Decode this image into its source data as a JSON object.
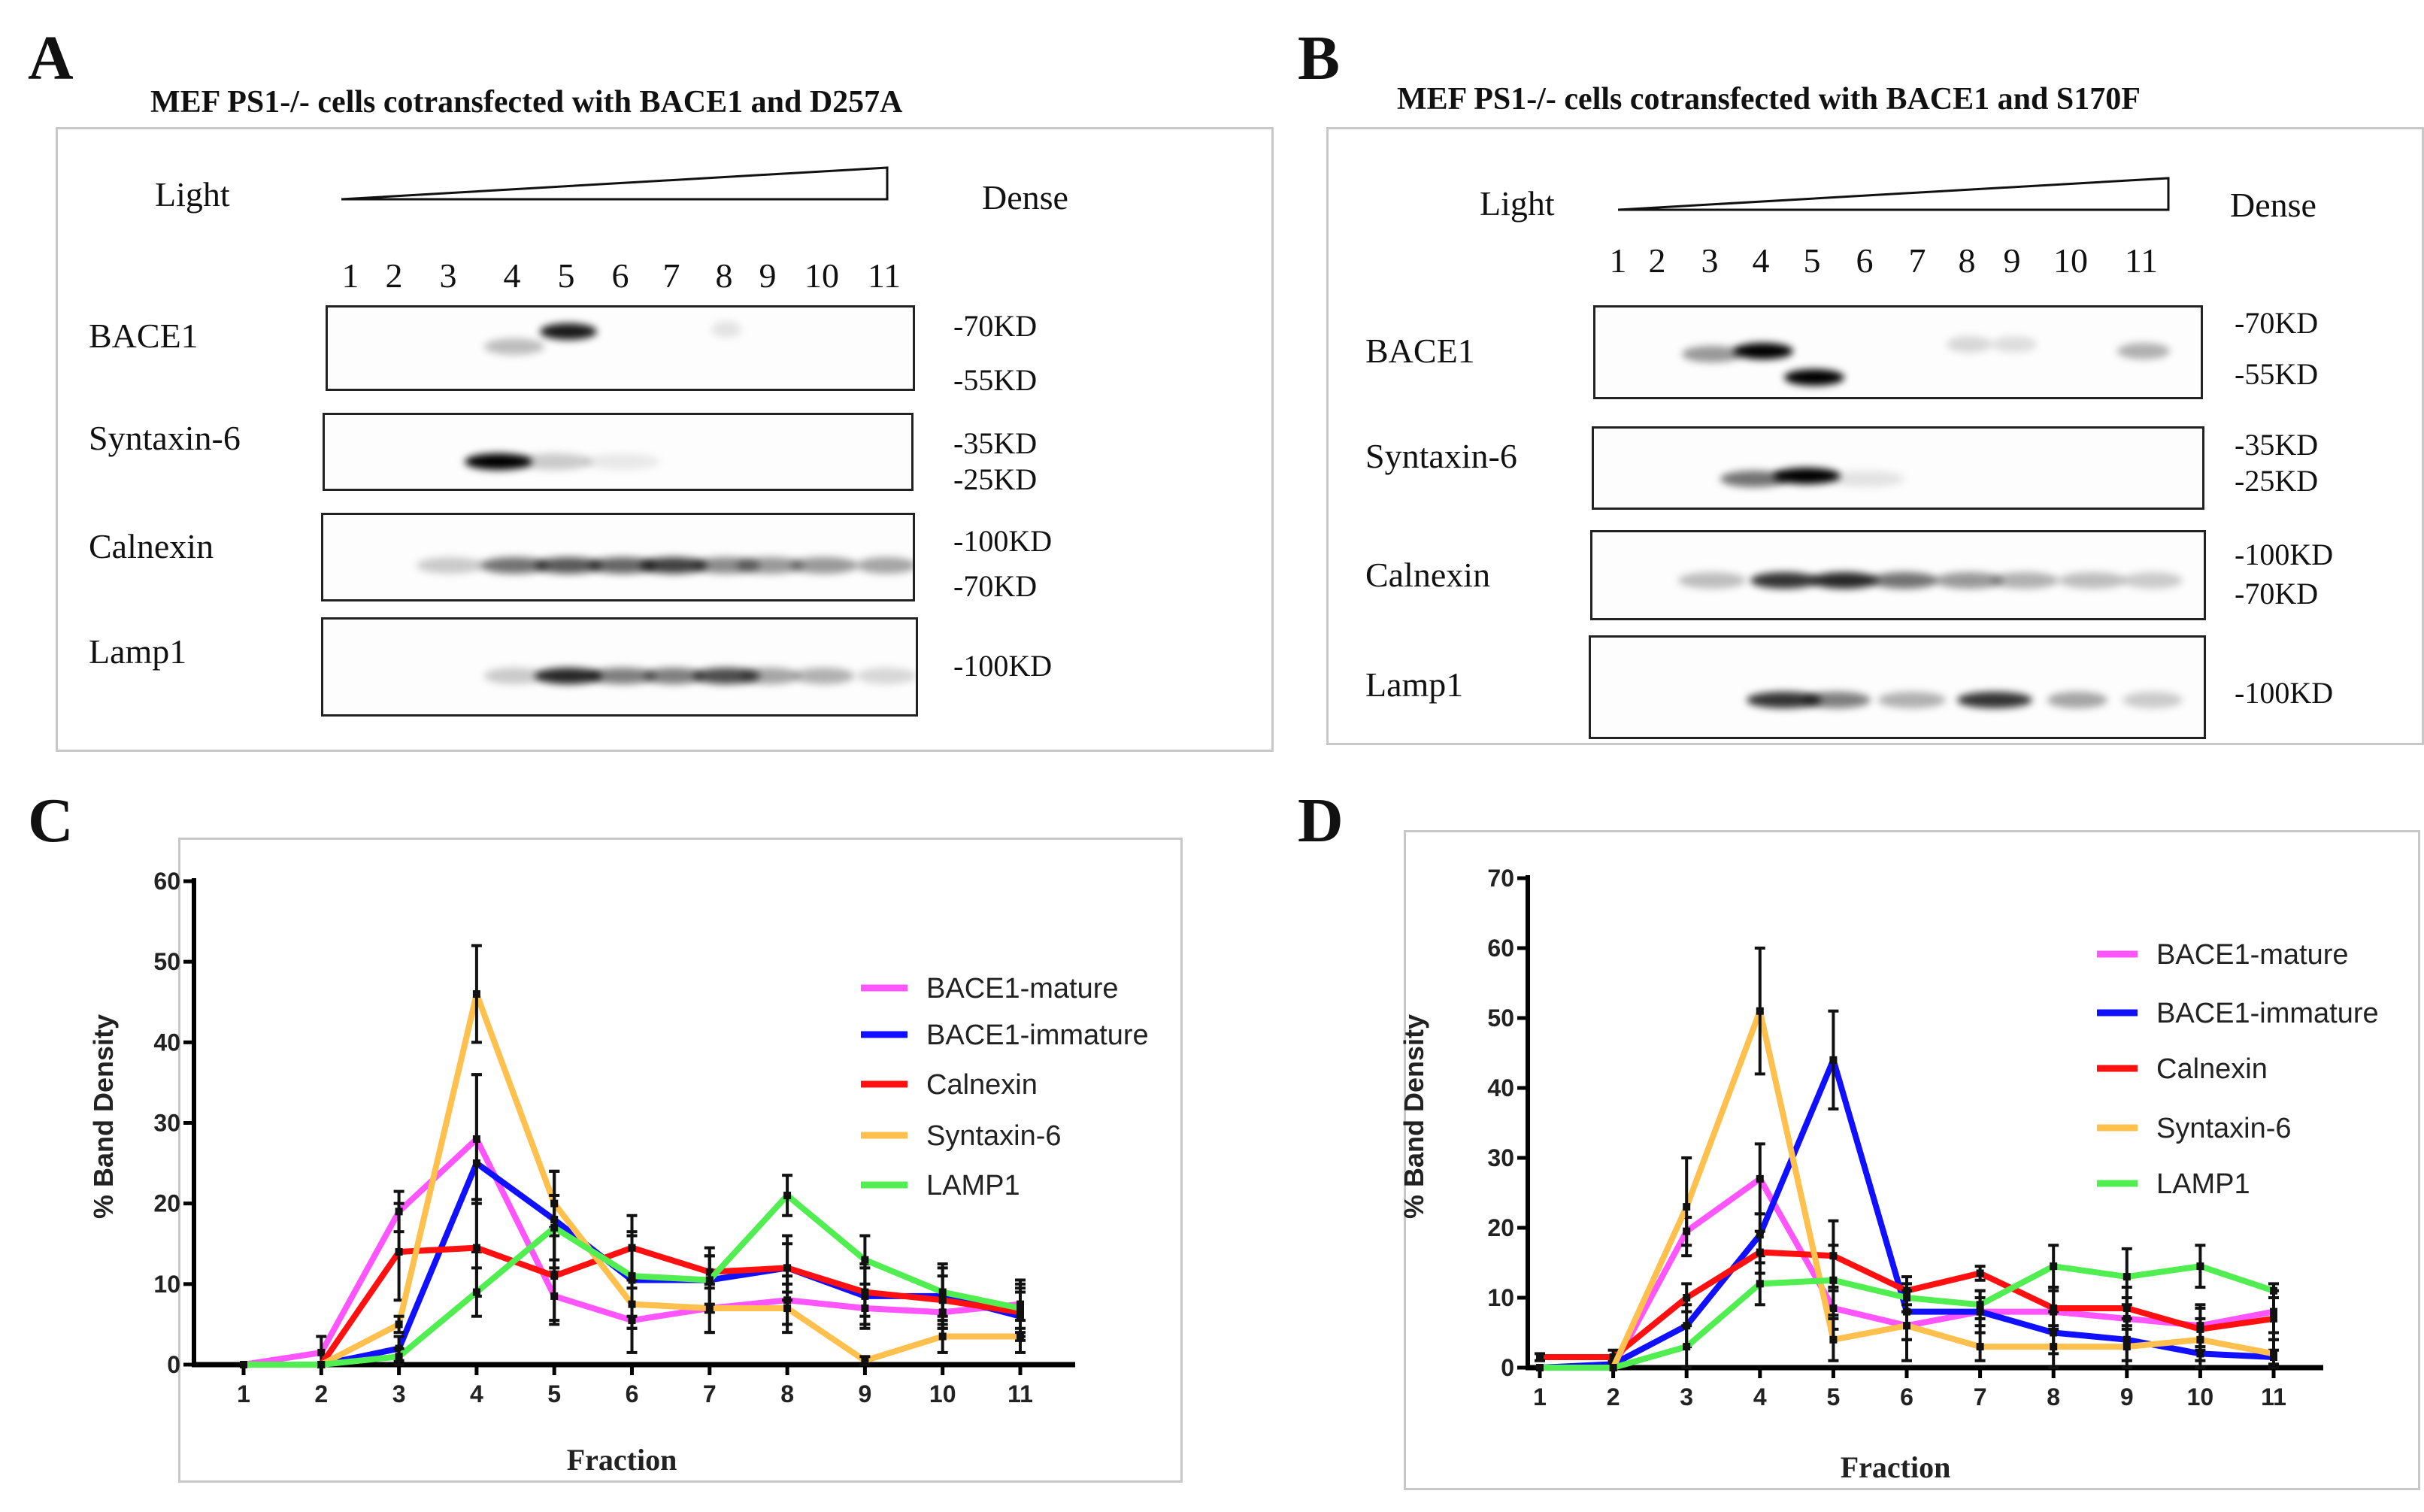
{
  "panel_a": {
    "letter": "A",
    "title": "MEF PS1-/- cells cotransfected with BACE1 and D257A",
    "light": "Light",
    "dense": "Dense",
    "lanes": [
      "1",
      "2",
      "3",
      "4",
      "5",
      "6",
      "7",
      "8",
      "9",
      "10",
      "11"
    ],
    "blots": [
      {
        "label": "BACE1",
        "markers": [
          "-70KD",
          "-55KD"
        ]
      },
      {
        "label": "Syntaxin-6",
        "markers": [
          "-35KD",
          "-25KD"
        ]
      },
      {
        "label": "Calnexin",
        "markers": [
          "-100KD",
          "-70KD"
        ]
      },
      {
        "label": "Lamp1",
        "markers": [
          "-100KD"
        ]
      }
    ]
  },
  "panel_b": {
    "letter": "B",
    "title": "MEF PS1-/- cells cotransfected with BACE1 and S170F",
    "light": "Light",
    "dense": "Dense",
    "lanes": [
      "1",
      "2",
      "3",
      "4",
      "5",
      "6",
      "7",
      "8",
      "9",
      "10",
      "11"
    ],
    "blots": [
      {
        "label": "BACE1",
        "markers": [
          "-70KD",
          "-55KD"
        ]
      },
      {
        "label": "Syntaxin-6",
        "markers": [
          "-35KD",
          "-25KD"
        ]
      },
      {
        "label": "Calnexin",
        "markers": [
          "-100KD",
          "-70KD"
        ]
      },
      {
        "label": "Lamp1",
        "markers": [
          "-100KD"
        ]
      }
    ]
  },
  "panel_c": {
    "letter": "C"
  },
  "panel_d": {
    "letter": "D"
  },
  "chart_data": [
    {
      "type": "line",
      "panel": "C",
      "xlabel": "Fraction",
      "ylabel": "% Band Density",
      "x": [
        1,
        2,
        3,
        4,
        5,
        6,
        7,
        8,
        9,
        10,
        11
      ],
      "ylim": [
        0,
        60
      ],
      "yticks": [
        0,
        10,
        20,
        30,
        40,
        50,
        60
      ],
      "legend_position": "right",
      "series": [
        {
          "name": "BACE1-mature",
          "color": "#ff55ff",
          "values": [
            0,
            1.5,
            19,
            28,
            8.5,
            5.5,
            7,
            8,
            7,
            6.5,
            7.5
          ],
          "error": [
            0,
            2,
            2.5,
            8,
            3,
            4,
            3,
            3,
            2,
            2,
            3
          ]
        },
        {
          "name": "BACE1-immature",
          "color": "#1010ff",
          "values": [
            0,
            0,
            2,
            25,
            18,
            10.5,
            10.5,
            12,
            8.5,
            8.5,
            6
          ],
          "error": [
            0,
            0,
            1.5,
            11,
            6,
            6,
            4,
            4,
            4,
            4,
            3
          ]
        },
        {
          "name": "Calnexin",
          "color": "#ff1010",
          "values": [
            0,
            0,
            14,
            14.5,
            11,
            14.5,
            11.5,
            12,
            9,
            8,
            6.5
          ],
          "error": [
            0,
            0,
            6,
            6,
            6,
            4,
            2,
            3,
            3,
            3,
            3
          ]
        },
        {
          "name": "Syntaxin-6",
          "color": "#ffc04d",
          "values": [
            0,
            0,
            5,
            46,
            20,
            7.5,
            7,
            7,
            0.5,
            3.5,
            3.5
          ],
          "error": [
            0,
            0,
            1,
            6,
            4,
            3,
            3,
            3,
            0.5,
            2,
            2
          ]
        },
        {
          "name": "LAMP1",
          "color": "#50ee50",
          "values": [
            0,
            0,
            1,
            9,
            17,
            11,
            10.5,
            21,
            13,
            9,
            7
          ],
          "error": [
            0,
            0,
            1,
            3,
            4,
            5,
            3,
            2.5,
            3,
            3,
            3
          ]
        }
      ]
    },
    {
      "type": "line",
      "panel": "D",
      "xlabel": "Fraction",
      "ylabel": "% Band Density",
      "x": [
        1,
        2,
        3,
        4,
        5,
        6,
        7,
        8,
        9,
        10,
        11
      ],
      "ylim": [
        0,
        70
      ],
      "yticks": [
        0,
        10,
        20,
        30,
        40,
        50,
        60,
        70
      ],
      "legend_position": "right",
      "series": [
        {
          "name": "BACE1-mature",
          "color": "#ff55ff",
          "values": [
            0,
            0,
            19.5,
            27,
            8.5,
            6,
            8,
            8,
            7,
            6,
            8
          ],
          "error": [
            0,
            0,
            2,
            5,
            3,
            2,
            2,
            3,
            3,
            3,
            3
          ]
        },
        {
          "name": "BACE1-immature",
          "color": "#1010ff",
          "values": [
            0,
            0.5,
            6,
            19,
            44,
            8,
            8,
            5,
            4,
            2,
            1.5
          ],
          "error": [
            0,
            0.5,
            3,
            3,
            7,
            4,
            3,
            3,
            3,
            2,
            1
          ]
        },
        {
          "name": "Calnexin",
          "color": "#ff1010",
          "values": [
            1.5,
            1.5,
            10,
            16.5,
            16,
            11,
            13.5,
            8.5,
            8.5,
            5.5,
            7
          ],
          "error": [
            0.5,
            1,
            2,
            3,
            5,
            2,
            1,
            3,
            3,
            3,
            3
          ]
        },
        {
          "name": "Syntaxin-6",
          "color": "#ffc04d",
          "values": [
            0,
            0,
            23,
            51,
            4,
            6,
            3,
            3,
            3,
            4,
            2
          ],
          "error": [
            0,
            0,
            7,
            9,
            3,
            5,
            2,
            3,
            3,
            3,
            2
          ]
        },
        {
          "name": "LAMP1",
          "color": "#50ee50",
          "values": [
            0,
            0,
            3,
            12,
            12.5,
            10,
            9,
            14.5,
            13,
            14.5,
            11
          ],
          "error": [
            0,
            0,
            3,
            3,
            5,
            2,
            2,
            3,
            4,
            3,
            1
          ]
        }
      ]
    }
  ]
}
